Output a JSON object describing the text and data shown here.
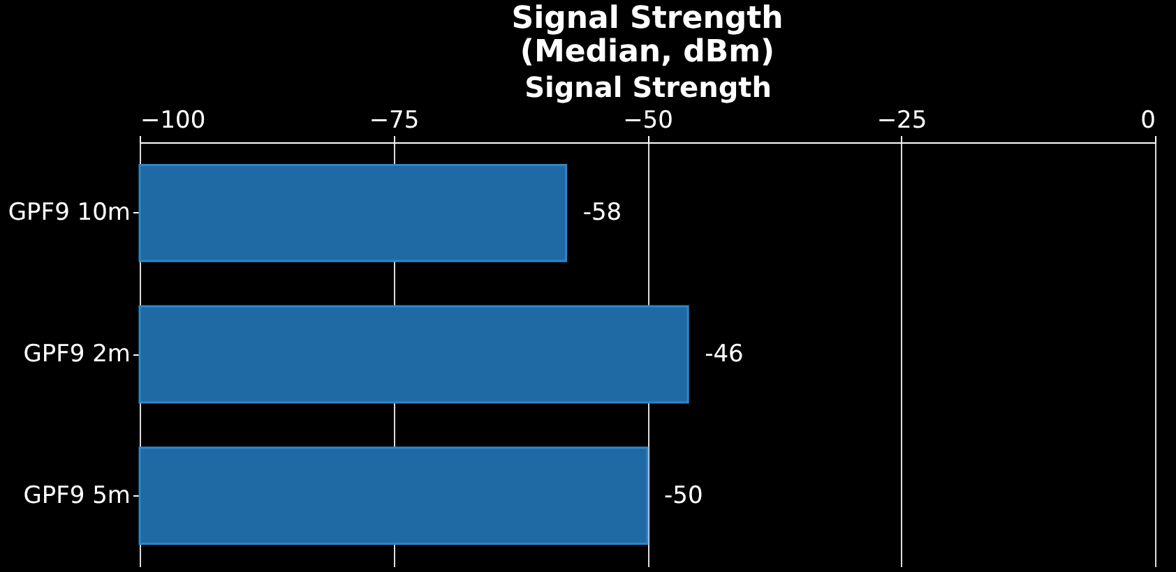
{
  "chart_data": {
    "type": "bar",
    "orientation": "horizontal",
    "title": "Signal Strength\n(Median, dBm)",
    "xlabel": "Signal Strength",
    "categories": [
      "GPF9 10m",
      "GPF9 2m",
      "GPF9 5m"
    ],
    "base": [
      -100,
      -100,
      -100
    ],
    "values": [
      42,
      54,
      50
    ],
    "color": "#1f6aa5",
    "value_labels": [
      "-58",
      "-46",
      "-50"
    ],
    "xlim": [
      -100,
      0
    ],
    "xticks": [
      -100,
      -75,
      -50,
      -25,
      0
    ],
    "grid": "x"
  }
}
